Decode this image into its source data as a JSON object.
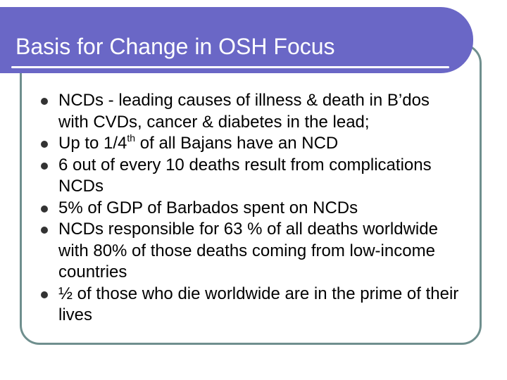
{
  "slide": {
    "title": "Basis for Change in OSH Focus",
    "colors": {
      "title_bar": "#6a67c6",
      "frame_border": "#6f8f8e",
      "bullet": "#333333"
    },
    "bullets": [
      {
        "text": "NCDs - leading causes of illness & death in B’dos with CVDs, cancer & diabetes in the lead;"
      },
      {
        "pre": "Up to 1/4",
        "sup": "th",
        "post": " of all Bajans have an NCD"
      },
      {
        "text": "6 out of every 10 deaths result from complications NCDs"
      },
      {
        "text": "5% of GDP of Barbados spent on NCDs"
      },
      {
        "text": "NCDs responsible for 63 % of all deaths worldwide with 80% of those deaths coming from low-income countries"
      },
      {
        "text": "½ of those who die worldwide are in the prime of their lives"
      }
    ]
  }
}
